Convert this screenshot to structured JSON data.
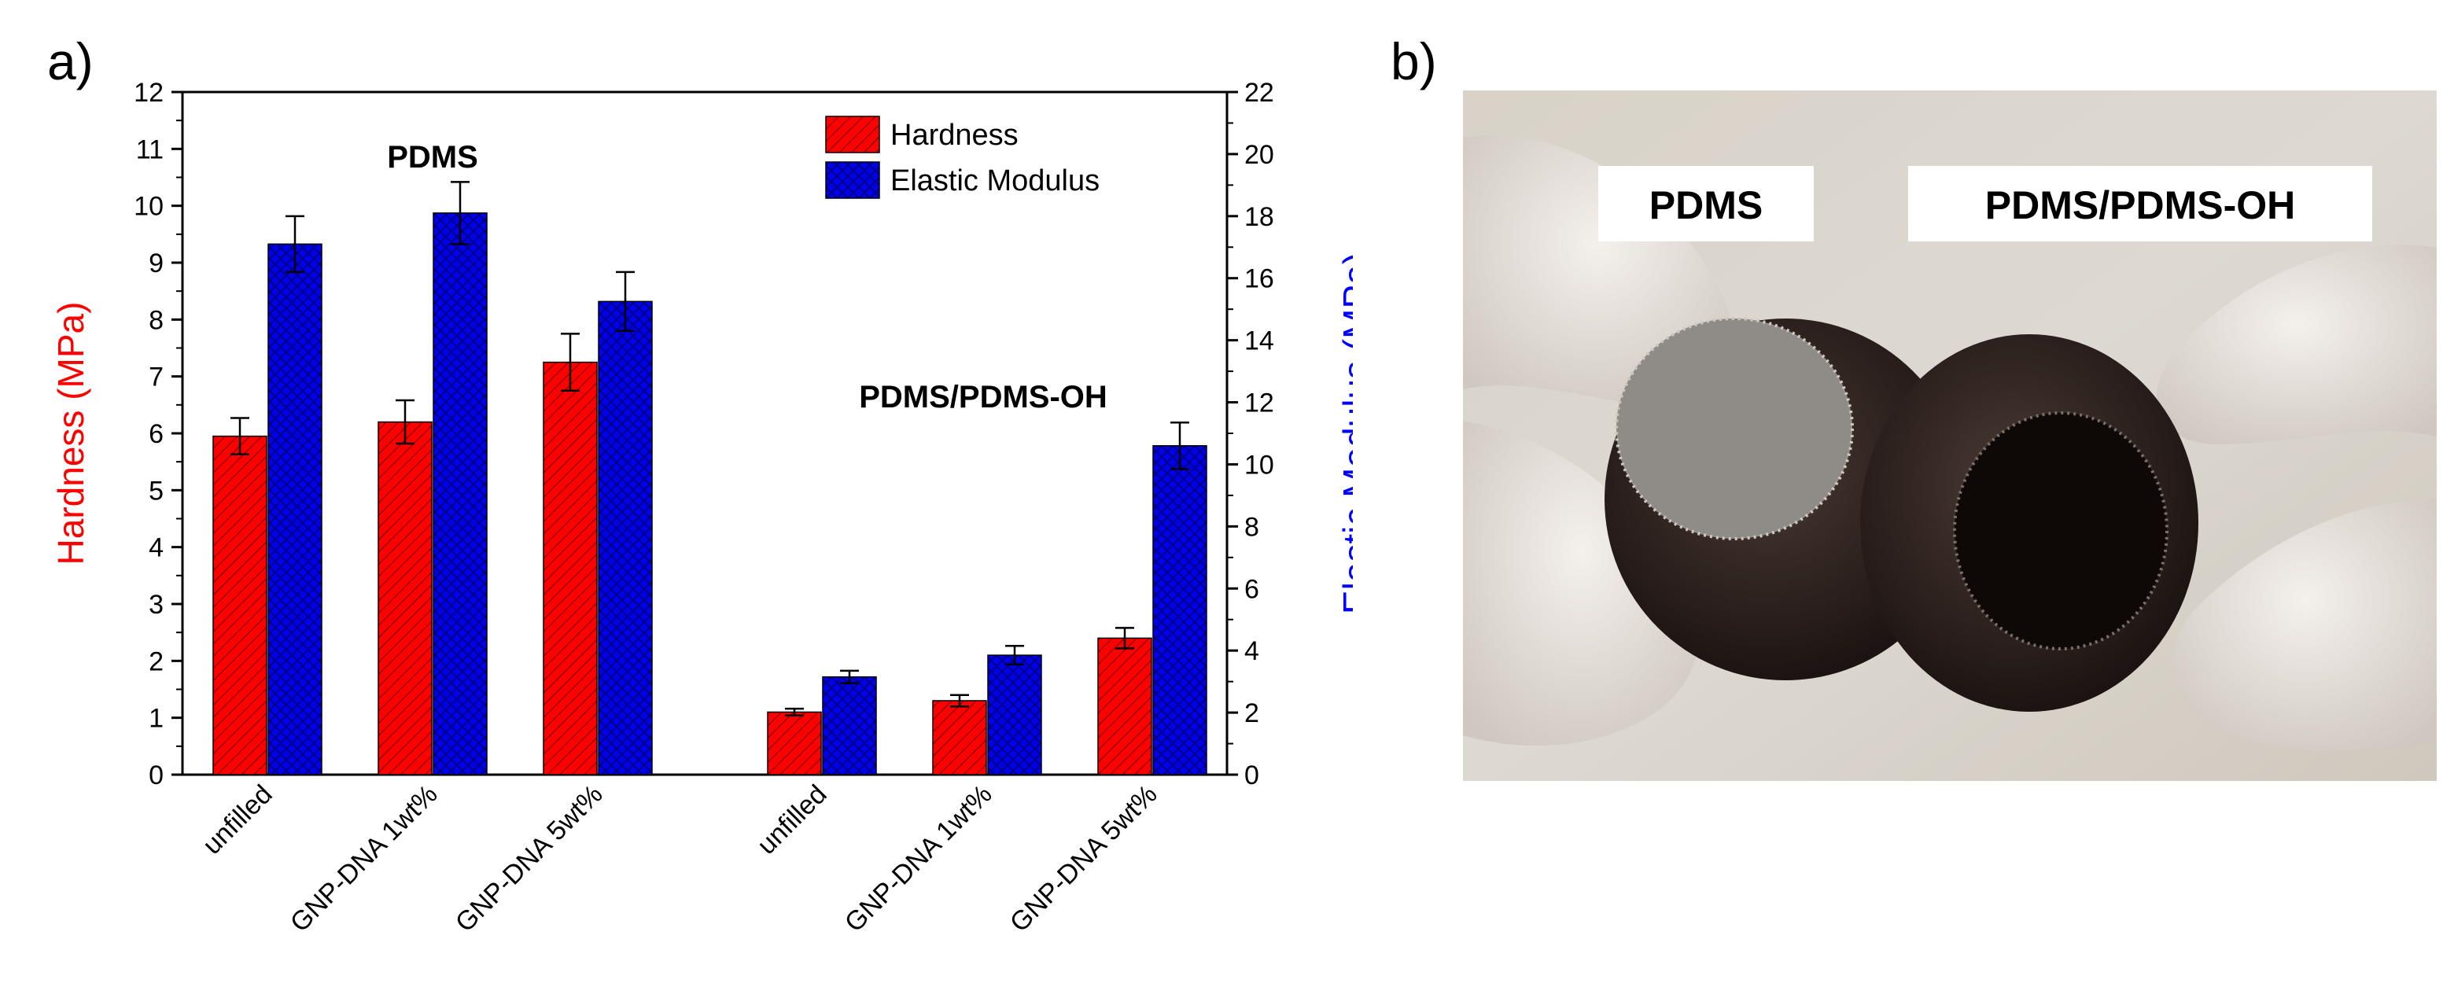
{
  "panels": {
    "a": "a)",
    "b": "b)"
  },
  "chart_data": {
    "type": "bar",
    "groups": [
      {
        "label": "PDMS",
        "categories": [
          "unfilled",
          "GNP-DNA 1wt%",
          "GNP-DNA 5wt%"
        ]
      },
      {
        "label": "PDMS/PDMS-OH",
        "categories": [
          "unfilled",
          "GNP-DNA 1wt%",
          "GNP-DNA 5wt%"
        ]
      }
    ],
    "categories": [
      "unfilled",
      "GNP-DNA 1wt%",
      "GNP-DNA 5wt%",
      "unfilled",
      "GNP-DNA 1wt%",
      "GNP-DNA 5wt%"
    ],
    "series": [
      {
        "name": "Hardness",
        "axis": "left",
        "color": "#ff0000",
        "values": [
          5.95,
          6.2,
          7.25,
          1.1,
          1.3,
          2.4
        ],
        "errors": [
          0.32,
          0.38,
          0.5,
          0.06,
          0.1,
          0.18
        ]
      },
      {
        "name": "Elastic Modulus",
        "axis": "right",
        "color": "#0000ff",
        "values": [
          17.1,
          18.1,
          15.25,
          3.15,
          3.85,
          10.6
        ],
        "errors": [
          0.9,
          1.0,
          0.95,
          0.2,
          0.3,
          0.75
        ]
      }
    ],
    "ylabel_left": "Hardness (MPa)",
    "ylabel_right": "Elastic Modulus (MPa)",
    "ylim_left": [
      0,
      12
    ],
    "ylim_right": [
      0,
      22
    ],
    "yticks_left": [
      "0",
      "1",
      "2",
      "3",
      "4",
      "5",
      "6",
      "7",
      "8",
      "9",
      "10",
      "11",
      "12"
    ],
    "yticks_right": [
      "0",
      "2",
      "4",
      "6",
      "8",
      "10",
      "12",
      "14",
      "16",
      "18",
      "20",
      "22"
    ],
    "legend_position": "top-right",
    "grid": false
  },
  "photo": {
    "labels": [
      "PDMS",
      "PDMS/PDMS-OH"
    ]
  }
}
